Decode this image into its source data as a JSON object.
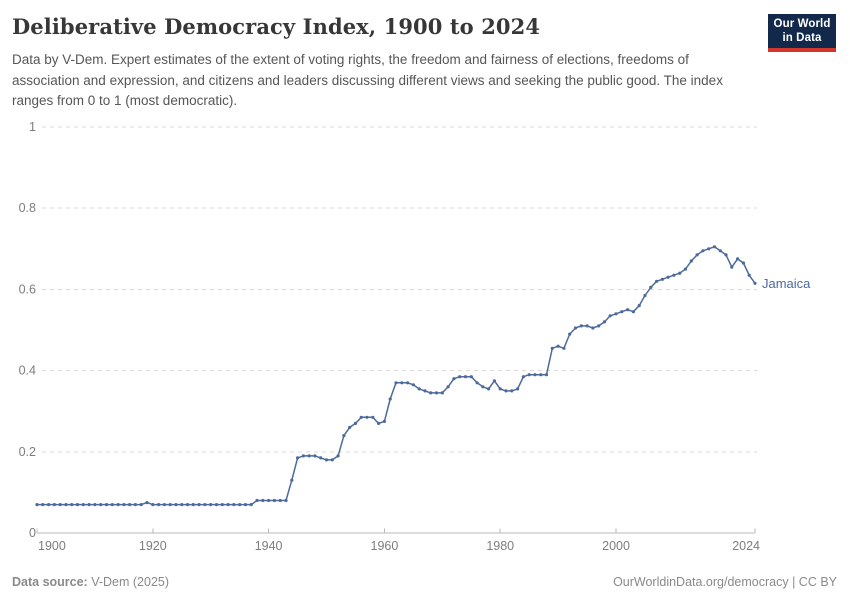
{
  "header": {
    "title": "Deliberative Democracy Index, 1900 to 2024",
    "subtitle": "Data by V-Dem. Expert estimates of the extent of voting rights, the freedom and fairness of elections, freedoms of association and expression, and citizens and leaders discussing different views and seeking the public good. The index ranges from 0 to 1 (most democratic).",
    "logo": {
      "line1": "Our World",
      "line2": "in Data"
    }
  },
  "chart_data": {
    "type": "line",
    "title": "Deliberative Democracy Index, 1900 to 2024",
    "xlabel": "",
    "ylabel": "",
    "xlim": [
      1900,
      2024
    ],
    "ylim": [
      0,
      1
    ],
    "x_ticks": [
      1900,
      1920,
      1940,
      1960,
      1980,
      2000,
      2024
    ],
    "y_ticks": [
      0,
      0.2,
      0.4,
      0.6,
      0.8,
      1
    ],
    "grid": "horizontal-dashed",
    "legend_position": "end-of-line",
    "end_label": "Jamaica",
    "series": [
      {
        "name": "Jamaica",
        "color": "#4c6a9c",
        "years": [
          1900,
          1901,
          1902,
          1903,
          1904,
          1905,
          1906,
          1907,
          1908,
          1909,
          1910,
          1911,
          1912,
          1913,
          1914,
          1915,
          1916,
          1917,
          1918,
          1919,
          1920,
          1921,
          1922,
          1923,
          1924,
          1925,
          1926,
          1927,
          1928,
          1929,
          1930,
          1931,
          1932,
          1933,
          1934,
          1935,
          1936,
          1937,
          1938,
          1939,
          1940,
          1941,
          1942,
          1943,
          1944,
          1945,
          1946,
          1947,
          1948,
          1949,
          1950,
          1951,
          1952,
          1953,
          1954,
          1955,
          1956,
          1957,
          1958,
          1959,
          1960,
          1961,
          1962,
          1963,
          1964,
          1965,
          1966,
          1967,
          1968,
          1969,
          1970,
          1971,
          1972,
          1973,
          1974,
          1975,
          1976,
          1977,
          1978,
          1979,
          1980,
          1981,
          1982,
          1983,
          1984,
          1985,
          1986,
          1987,
          1988,
          1989,
          1990,
          1991,
          1992,
          1993,
          1994,
          1995,
          1996,
          1997,
          1998,
          1999,
          2000,
          2001,
          2002,
          2003,
          2004,
          2005,
          2006,
          2007,
          2008,
          2009,
          2010,
          2011,
          2012,
          2013,
          2014,
          2015,
          2016,
          2017,
          2018,
          2019,
          2020,
          2021,
          2022,
          2023,
          2024
        ],
        "values": [
          0.07,
          0.07,
          0.07,
          0.07,
          0.07,
          0.07,
          0.07,
          0.07,
          0.07,
          0.07,
          0.07,
          0.07,
          0.07,
          0.07,
          0.07,
          0.07,
          0.07,
          0.07,
          0.07,
          0.075,
          0.07,
          0.07,
          0.07,
          0.07,
          0.07,
          0.07,
          0.07,
          0.07,
          0.07,
          0.07,
          0.07,
          0.07,
          0.07,
          0.07,
          0.07,
          0.07,
          0.07,
          0.07,
          0.08,
          0.08,
          0.08,
          0.08,
          0.08,
          0.08,
          0.13,
          0.185,
          0.19,
          0.19,
          0.19,
          0.185,
          0.18,
          0.18,
          0.19,
          0.24,
          0.26,
          0.27,
          0.285,
          0.285,
          0.285,
          0.27,
          0.275,
          0.33,
          0.37,
          0.37,
          0.37,
          0.365,
          0.355,
          0.35,
          0.345,
          0.345,
          0.345,
          0.36,
          0.38,
          0.385,
          0.385,
          0.385,
          0.37,
          0.36,
          0.355,
          0.375,
          0.355,
          0.35,
          0.35,
          0.355,
          0.385,
          0.39,
          0.39,
          0.39,
          0.39,
          0.455,
          0.46,
          0.455,
          0.49,
          0.505,
          0.51,
          0.51,
          0.505,
          0.51,
          0.52,
          0.535,
          0.54,
          0.545,
          0.55,
          0.545,
          0.56,
          0.585,
          0.605,
          0.62,
          0.625,
          0.63,
          0.635,
          0.64,
          0.65,
          0.67,
          0.685,
          0.695,
          0.7,
          0.705,
          0.695,
          0.685,
          0.655,
          0.675,
          0.665,
          0.635,
          0.615
        ]
      }
    ]
  },
  "colors": {
    "line": "#4c6a9c",
    "grid": "#d9d9d9",
    "axis": "#b8b8b8",
    "tick_label": "#7d7d7d",
    "logo_bg": "#12294b",
    "logo_accent": "#d2352b"
  },
  "footer": {
    "source_label": "Data source:",
    "source_value": " V-Dem (2025)",
    "site_link": "OurWorldinData.org/democracy",
    "separator": " | ",
    "license": "CC BY"
  }
}
